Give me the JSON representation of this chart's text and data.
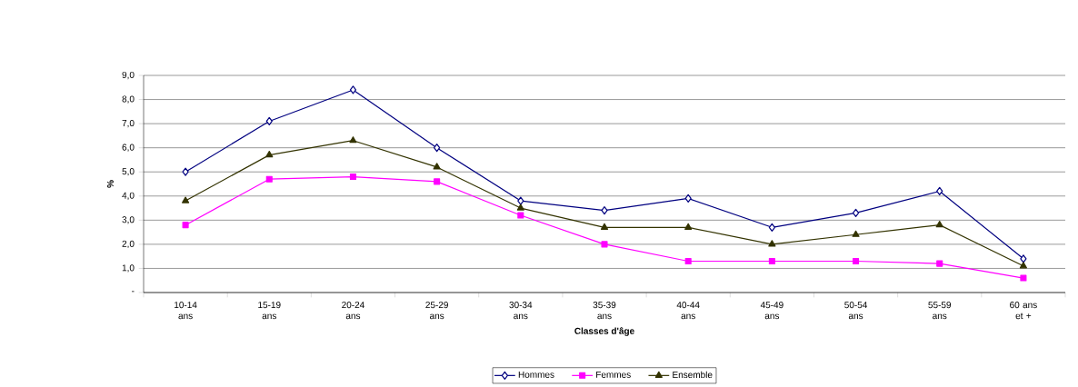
{
  "chart_data": {
    "type": "line",
    "xlabel": "Classes d'âge",
    "ylabel": "%",
    "categories": [
      "10-14 ans",
      "15-19 ans",
      "20-24 ans",
      "25-29 ans",
      "30-34 ans",
      "35-39 ans",
      "40-44 ans",
      "45-49 ans",
      "50-54 ans",
      "55-59 ans",
      "60 ans et +"
    ],
    "series": [
      {
        "name": "Hommes",
        "color": "#000080",
        "marker": "diamond",
        "values": [
          5.0,
          7.1,
          8.4,
          6.0,
          3.8,
          3.4,
          3.9,
          2.7,
          3.3,
          4.2,
          1.4
        ]
      },
      {
        "name": "Femmes",
        "color": "#ff00ff",
        "marker": "square",
        "values": [
          2.8,
          4.7,
          4.8,
          4.6,
          3.2,
          2.0,
          1.3,
          1.3,
          1.3,
          1.2,
          0.6
        ]
      },
      {
        "name": "Ensemble",
        "color": "#333300",
        "marker": "triangle",
        "values": [
          3.8,
          5.7,
          6.3,
          5.2,
          3.5,
          2.7,
          2.7,
          2.0,
          2.4,
          2.8,
          1.1
        ]
      }
    ],
    "ylim": [
      0,
      9
    ],
    "yticks": [
      {
        "value": 0,
        "label": "-"
      },
      {
        "value": 1,
        "label": "1,0"
      },
      {
        "value": 2,
        "label": "2,0"
      },
      {
        "value": 3,
        "label": "3,0"
      },
      {
        "value": 4,
        "label": "4,0"
      },
      {
        "value": 5,
        "label": "5,0"
      },
      {
        "value": 6,
        "label": "6,0"
      },
      {
        "value": 7,
        "label": "7,0"
      },
      {
        "value": 8,
        "label": "8,0"
      },
      {
        "value": 9,
        "label": "9,0"
      }
    ],
    "grid": "y",
    "legend": "bottom",
    "line_style": "solid"
  }
}
